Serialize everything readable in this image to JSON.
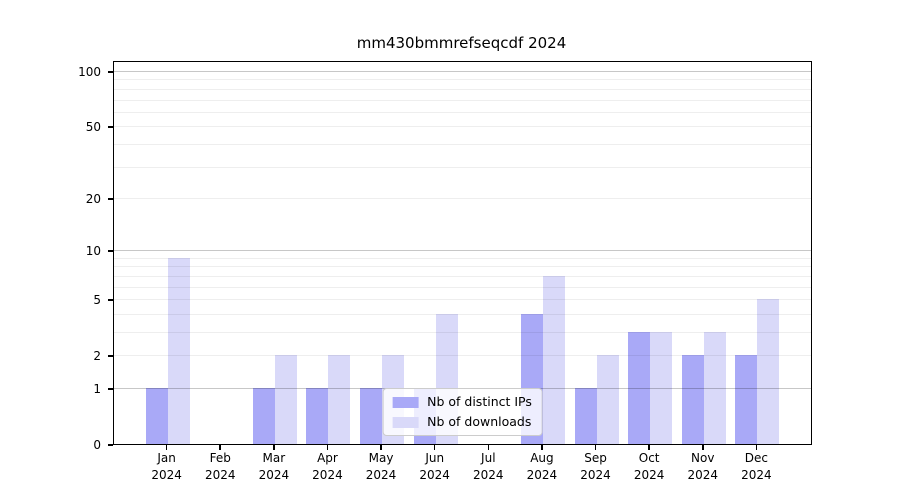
{
  "title": "mm430bmmrefseqcdf 2024",
  "chart_data": {
    "type": "bar",
    "title": "mm430bmmrefseqcdf 2024",
    "categories": [
      "Jan",
      "Feb",
      "Mar",
      "Apr",
      "May",
      "Jun",
      "Jul",
      "Aug",
      "Sep",
      "Oct",
      "Nov",
      "Dec"
    ],
    "category_year": "2024",
    "series": [
      {
        "name": "Nb of distinct IPs",
        "color": "#a9a9f7",
        "values": [
          1,
          0,
          1,
          1,
          1,
          1,
          0,
          4,
          1,
          3,
          2,
          2
        ]
      },
      {
        "name": "Nb of downloads",
        "color": "#d9d9f9",
        "values": [
          9,
          0,
          2,
          2,
          2,
          4,
          0,
          7,
          2,
          3,
          3,
          5
        ]
      }
    ],
    "xlabel": "",
    "ylabel": "",
    "yscale": "log1p",
    "ylim": [
      0,
      112
    ],
    "yticks": [
      0,
      1,
      2,
      5,
      10,
      20,
      50,
      100
    ],
    "grid": {
      "on": true,
      "drawn_over_bars": true,
      "minor_values": [
        2,
        3,
        4,
        5,
        6,
        7,
        8,
        9,
        20,
        30,
        40,
        50,
        60,
        70,
        80,
        90
      ],
      "major_values": [
        1,
        10,
        100
      ]
    },
    "legend": {
      "position": "lower center",
      "entries": [
        "Nb of distinct IPs",
        "Nb of downloads"
      ]
    },
    "colors": {
      "distinct_ips": "#a9a9f7",
      "downloads": "#d9d9f9",
      "background": "#ffffff",
      "axis": "#000000"
    }
  }
}
